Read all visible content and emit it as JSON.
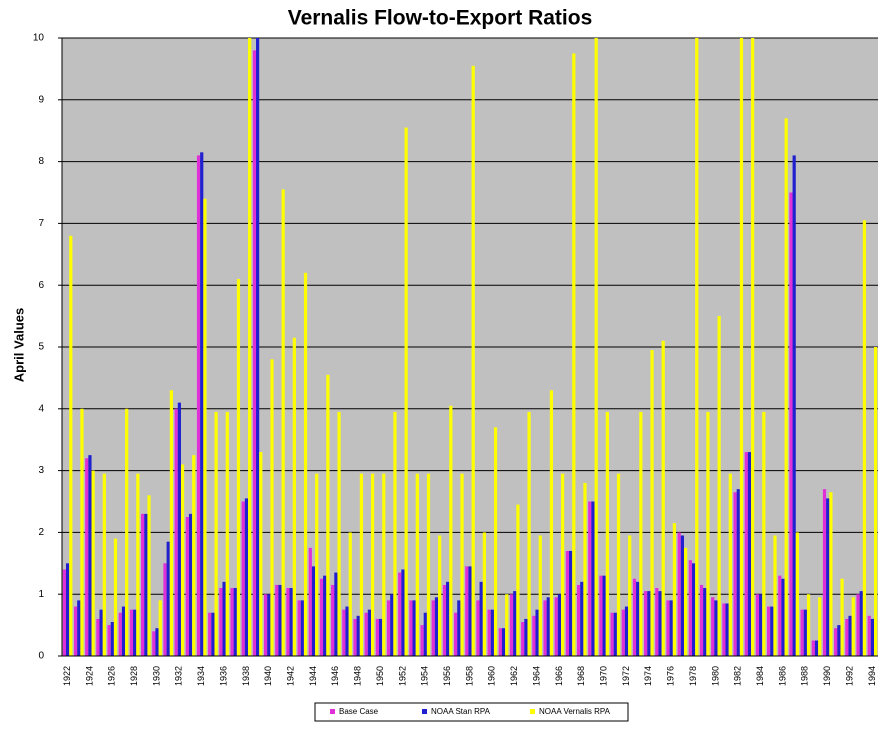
{
  "chart_data": {
    "type": "bar",
    "title": "Vernalis Flow-to-Export Ratios",
    "y_label": "April Values",
    "categories": [
      "1922",
      null,
      "1924",
      null,
      "1926",
      null,
      "1928",
      null,
      "1930",
      null,
      "1932",
      null,
      "1934",
      null,
      "1936",
      null,
      "1938",
      null,
      "1940",
      null,
      "1942",
      null,
      "1944",
      null,
      "1946",
      null,
      "1948",
      null,
      "1950",
      null,
      "1952",
      null,
      "1954",
      null,
      "1956",
      null,
      "1958",
      null,
      "1960",
      null,
      "1962",
      null,
      "1964",
      null,
      "1966",
      null,
      "1968",
      null,
      "1970",
      null,
      "1972",
      null,
      "1974",
      null,
      "1976",
      null,
      "1978",
      null,
      "1980",
      null,
      "1982",
      null,
      "1984",
      null,
      "1986",
      null,
      "1988",
      null,
      "1990",
      null,
      "1992",
      null,
      "1994"
    ],
    "series": [
      {
        "name": "Base Case",
        "color": "#e030d8",
        "values": [
          1.4,
          0.8,
          3.2,
          0.6,
          0.5,
          0.7,
          0.75,
          2.3,
          0.4,
          1.5,
          4.0,
          2.25,
          8.1,
          0.7,
          1.1,
          1.1,
          2.5,
          9.8,
          1.0,
          1.15,
          1.1,
          0.9,
          1.75,
          1.25,
          1.15,
          0.75,
          0.6,
          0.7,
          0.6,
          0.9,
          1.35,
          0.9,
          0.5,
          0.9,
          1.15,
          0.7,
          1.45,
          0.9,
          0.75,
          0.45,
          1.0,
          0.55,
          0.65,
          0.9,
          0.95,
          1.7,
          1.15,
          2.5,
          1.3,
          0.7,
          0.75,
          1.25,
          1.05,
          1.1,
          0.9,
          2.0,
          1.55,
          1.15,
          0.95,
          0.85,
          2.65,
          3.3,
          1.0,
          0.8,
          1.3,
          7.5,
          0.75,
          0.25,
          2.7,
          0.45,
          0.6,
          1.0,
          0.65
        ]
      },
      {
        "name": "NOAA Stan RPA",
        "color": "#2020d0",
        "values": [
          1.5,
          0.9,
          3.25,
          0.75,
          0.55,
          0.8,
          0.75,
          2.3,
          0.45,
          1.85,
          4.1,
          2.3,
          8.15,
          0.7,
          1.2,
          1.1,
          2.55,
          10,
          1.0,
          1.15,
          1.1,
          0.9,
          1.45,
          1.3,
          1.35,
          0.8,
          0.65,
          0.75,
          0.6,
          1.0,
          1.4,
          0.9,
          0.7,
          0.95,
          1.2,
          0.9,
          1.45,
          1.2,
          0.75,
          0.45,
          1.05,
          0.6,
          0.75,
          0.95,
          1.0,
          1.7,
          1.2,
          2.5,
          1.3,
          0.7,
          0.8,
          1.2,
          1.05,
          1.05,
          0.9,
          1.95,
          1.5,
          1.1,
          0.9,
          0.85,
          2.7,
          3.3,
          1.0,
          0.8,
          1.25,
          8.1,
          0.75,
          0.25,
          2.55,
          0.5,
          0.65,
          1.05,
          0.6
        ]
      },
      {
        "name": "NOAA Vernalis RPA",
        "color": "#ffff00",
        "values": [
          6.8,
          4.0,
          3.0,
          2.95,
          1.9,
          4.0,
          2.95,
          2.6,
          0.9,
          4.3,
          3.1,
          3.25,
          7.4,
          3.95,
          3.95,
          6.1,
          10,
          3.3,
          4.8,
          7.55,
          5.15,
          6.2,
          2.95,
          4.55,
          3.95,
          2.0,
          2.95,
          2.95,
          2.95,
          3.95,
          8.55,
          2.95,
          2.95,
          1.95,
          4.05,
          2.95,
          9.55,
          2.0,
          3.7,
          1.0,
          2.45,
          3.95,
          1.95,
          4.3,
          2.95,
          9.75,
          2.8,
          10,
          3.95,
          2.95,
          1.95,
          3.95,
          4.95,
          5.1,
          2.15,
          1.75,
          10,
          3.95,
          5.5,
          2.95,
          10,
          10,
          3.95,
          1.95,
          8.7,
          2.0,
          1.0,
          0.95,
          2.65,
          1.25,
          0.95,
          7.05,
          5.0
        ]
      }
    ],
    "ylim": [
      0,
      10
    ],
    "yticks": [
      0,
      1,
      2,
      3,
      4,
      5,
      6,
      7,
      8,
      9,
      10
    ],
    "grid": true,
    "legend": "bottom"
  }
}
